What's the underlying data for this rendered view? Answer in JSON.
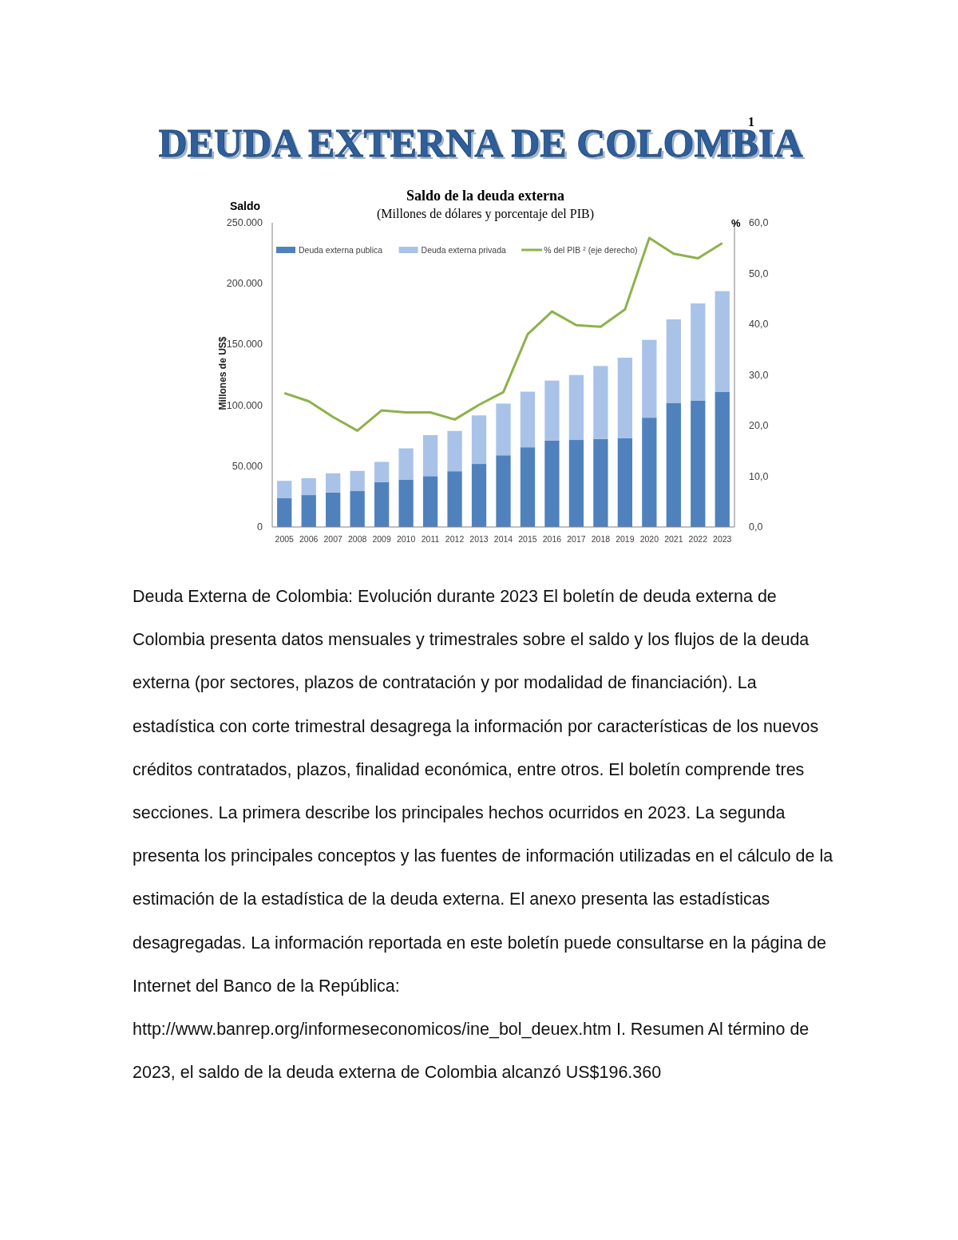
{
  "chart_data": {
    "type": "bar",
    "title": "Saldo de la deuda externa",
    "subtitle": "(Millones de dólares y porcentaje del PIB)",
    "ylabel": "Millones de US$",
    "y2label": "%",
    "annotations": [
      "DEUDA EXTERNA DE COLOMBIA",
      "1",
      "Saldo",
      "Deuda Externa de Colombia: Evolución durante 2023 El boletín de deuda externa de Colombia presenta datos mensuales y trimestrales sobre el saldo y los flujos de la deuda externa (por sectores, plazos de contratación y por modalidad de financiación). La estadística con corte trimestral desagrega la información por características de los nuevos créditos contratados, plazos, finalidad económica, entre otros. El boletín comprende tres secciones. La primera describe los principales hechos ocurridos en 2023. La segunda presenta los principales conceptos y las fuentes de información utilizadas en el cálculo de la estimación de la estadística de la deuda externa. El anexo presenta las estadísticas desagregadas. La información reportada en este boletín puede consultarse en la página de Internet del Banco de la República: http://www.banrep.org/informeseconomicos/ine_bol_deuex.htm I. Resumen Al término de 2023, el saldo de la deuda externa de Colombia alcanzó US$196.360"
    ],
    "categories": [
      "2005",
      "2006",
      "2007",
      "2008",
      "2009",
      "2010",
      "2011",
      "2012",
      "2013",
      "2014",
      "2015",
      "2016",
      "2017",
      "2018",
      "2019",
      "2020",
      "2021",
      "2022",
      "2023"
    ],
    "stacked": true,
    "series": [
      {
        "name": "Deuda externa publica",
        "color": "#4f81bd",
        "values": [
          23600,
          26200,
          28400,
          29500,
          36900,
          39000,
          41800,
          45800,
          51800,
          58900,
          65500,
          70900,
          71500,
          72400,
          72900,
          89800,
          102000,
          103700,
          110900
        ]
      },
      {
        "name": "Deuda externa privada",
        "color": "#a9c2e8",
        "values": [
          14300,
          13900,
          15700,
          16600,
          16600,
          25600,
          33700,
          33100,
          39900,
          42500,
          45700,
          49400,
          53400,
          59900,
          66200,
          64000,
          68600,
          80000,
          82900
        ]
      },
      {
        "name": "% del PIB ² (eje derecho)",
        "type": "line",
        "axis": "y2",
        "color": "#8db24a",
        "values": [
          26.4,
          24.8,
          21.7,
          19.0,
          23.0,
          22.6,
          22.6,
          21.2,
          24.1,
          26.6,
          38.0,
          42.5,
          39.8,
          39.5,
          42.9,
          57.0,
          53.9,
          53.0,
          56.0
        ]
      }
    ],
    "ylim": [
      0,
      250000
    ],
    "yticks": [
      {
        "value": 0,
        "label": "0"
      },
      {
        "value": 50000,
        "label": "50.000"
      },
      {
        "value": 100000,
        "label": "100.000"
      },
      {
        "value": 150000,
        "label": "150.000"
      },
      {
        "value": 200000,
        "label": "200.000"
      },
      {
        "value": 250000,
        "label": "250.000"
      }
    ],
    "y2lim": [
      0,
      60
    ],
    "y2ticks": [
      {
        "value": 0,
        "label": "0,0"
      },
      {
        "value": 10,
        "label": "10,0"
      },
      {
        "value": 20,
        "label": "20,0"
      },
      {
        "value": 30,
        "label": "30,0"
      },
      {
        "value": 40,
        "label": "40,0"
      },
      {
        "value": 50,
        "label": "50,0"
      },
      {
        "value": 60,
        "label": "60,0"
      }
    ],
    "legend": "top",
    "grid": false
  }
}
